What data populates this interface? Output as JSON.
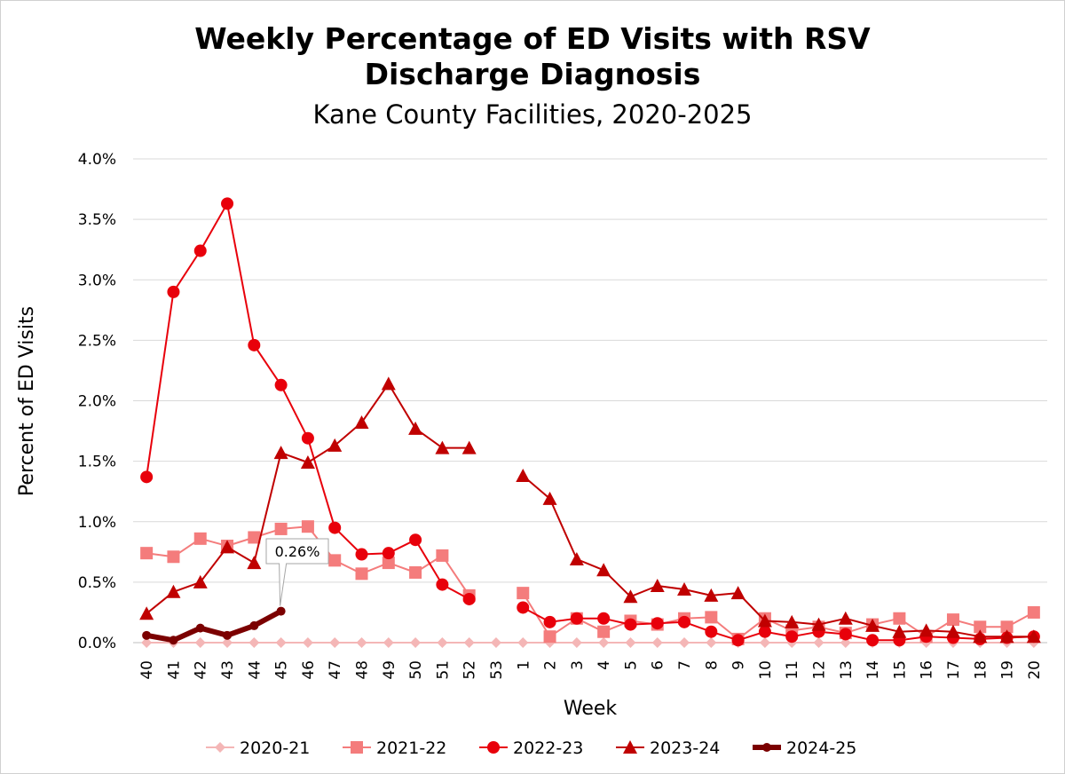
{
  "chart_data": {
    "type": "line",
    "title": "Weekly Percentage of ED Visits with RSV Discharge Diagnosis",
    "title_lines": [
      "Weekly Percentage of ED Visits with RSV",
      "Discharge Diagnosis"
    ],
    "subtitle": "Kane County Facilities, 2020-2025",
    "xlabel": "Week",
    "ylabel": "Percent of ED Visits",
    "ylim": [
      0,
      4.0
    ],
    "y_ticks": [
      "0.0%",
      "0.5%",
      "1.0%",
      "1.5%",
      "2.0%",
      "2.5%",
      "3.0%",
      "3.5%",
      "4.0%"
    ],
    "y_tick_values": [
      0,
      0.5,
      1.0,
      1.5,
      2.0,
      2.5,
      3.0,
      3.5,
      4.0
    ],
    "grid": true,
    "legend_position": "bottom",
    "categories": [
      "40",
      "41",
      "42",
      "43",
      "44",
      "45",
      "46",
      "47",
      "48",
      "49",
      "50",
      "51",
      "52",
      "53",
      "1",
      "2",
      "3",
      "4",
      "5",
      "6",
      "7",
      "8",
      "9",
      "10",
      "11",
      "12",
      "13",
      "14",
      "15",
      "16",
      "17",
      "18",
      "19",
      "20"
    ],
    "series": [
      {
        "name": "2020-21",
        "color": "#f4b6b6",
        "marker": "diamond",
        "width": 2,
        "values": [
          0,
          0,
          0,
          0,
          0,
          0,
          0,
          0,
          0,
          0,
          0,
          0,
          0,
          0,
          0,
          0,
          0,
          0,
          0,
          0,
          0,
          0,
          0,
          0,
          0,
          0,
          0,
          0,
          0,
          0,
          0,
          0,
          0,
          0
        ]
      },
      {
        "name": "2021-22",
        "color": "#f47c7c",
        "marker": "square",
        "width": 2,
        "values": [
          0.74,
          0.71,
          0.86,
          0.8,
          0.87,
          0.94,
          0.96,
          0.68,
          0.57,
          0.66,
          0.58,
          0.72,
          0.39,
          null,
          0.41,
          0.05,
          0.2,
          0.09,
          0.18,
          0.15,
          0.2,
          0.21,
          0.03,
          0.2,
          0.1,
          0.13,
          0.08,
          0.15,
          0.2,
          0.05,
          0.19,
          0.13,
          0.13,
          0.25
        ]
      },
      {
        "name": "2022-23",
        "color": "#e8000b",
        "marker": "circle",
        "width": 2,
        "values": [
          1.37,
          2.9,
          3.24,
          3.63,
          2.46,
          2.13,
          1.69,
          0.95,
          0.73,
          0.74,
          0.85,
          0.48,
          0.36,
          null,
          0.29,
          0.17,
          0.2,
          0.2,
          0.15,
          0.16,
          0.17,
          0.09,
          0.02,
          0.09,
          0.05,
          0.09,
          0.07,
          0.02,
          0.02,
          0.05,
          0.04,
          0.03,
          0.04,
          0.05
        ]
      },
      {
        "name": "2023-24",
        "color": "#c00000",
        "marker": "triangle",
        "width": 2,
        "values": [
          0.24,
          0.42,
          0.5,
          0.79,
          0.66,
          1.57,
          1.49,
          1.63,
          1.82,
          2.14,
          1.77,
          1.61,
          1.61,
          null,
          1.38,
          1.19,
          0.69,
          0.6,
          0.38,
          0.47,
          0.44,
          0.39,
          0.41,
          0.18,
          0.17,
          0.15,
          0.2,
          0.14,
          0.09,
          0.1,
          0.09,
          0.05,
          0.05,
          0.05
        ]
      },
      {
        "name": "2024-25",
        "color": "#7b0000",
        "marker": "circle",
        "width": 6,
        "values": [
          0.06,
          0.02,
          0.12,
          0.06,
          0.14,
          0.26,
          null,
          null,
          null,
          null,
          null,
          null,
          null,
          null,
          null,
          null,
          null,
          null,
          null,
          null,
          null,
          null,
          null,
          null,
          null,
          null,
          null,
          null,
          null,
          null,
          null,
          null,
          null,
          null
        ]
      }
    ],
    "annotations": [
      {
        "series": "2024-25",
        "category": "45",
        "value": 0.26,
        "text": "0.26%"
      }
    ]
  }
}
